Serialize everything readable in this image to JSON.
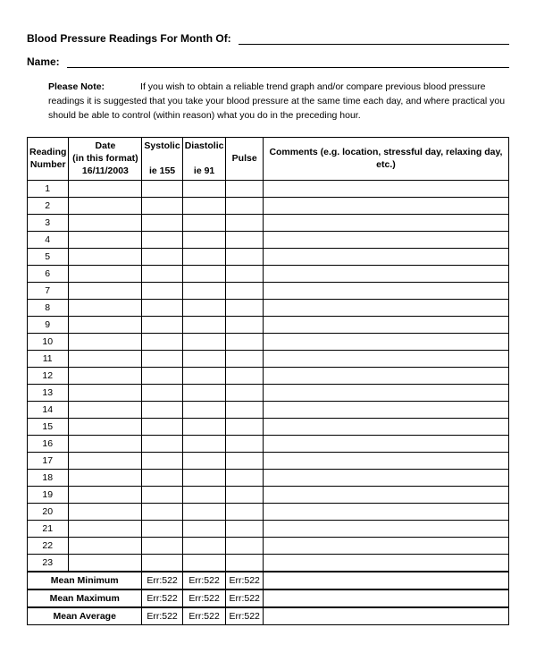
{
  "header": {
    "title_label": "Blood Pressure Readings For Month Of:",
    "name_label": "Name:"
  },
  "note": {
    "label": "Please Note:",
    "text": "If you wish to obtain a reliable trend graph and/or compare previous blood pressure readings it is suggested that you take your blood pressure at the same time each day, and where practical you should be able to control (within reason) what you do in the preceding hour."
  },
  "table": {
    "columns": {
      "number": {
        "line1": "Reading",
        "line2": "Number",
        "line3": ""
      },
      "date": {
        "line1": "Date",
        "line2": "(in this format)",
        "line3": "16/11/2003"
      },
      "systolic": {
        "line1": "Systolic",
        "line2": "",
        "line3": "ie 155"
      },
      "diastolic": {
        "line1": "Diastolic",
        "line2": "",
        "line3": "ie 91"
      },
      "pulse": {
        "line1": "Pulse",
        "line2": "",
        "line3": ""
      },
      "comments": {
        "line1": "Comments (e.g. location, stressful day, relaxing day, etc.)"
      }
    },
    "row_numbers": [
      "1",
      "2",
      "3",
      "4",
      "5",
      "6",
      "7",
      "8",
      "9",
      "10",
      "11",
      "12",
      "13",
      "14",
      "15",
      "16",
      "17",
      "18",
      "19",
      "20",
      "21",
      "22",
      "23"
    ],
    "summary": [
      {
        "label": "Mean Minimum",
        "sys": "Err:522",
        "dia": "Err:522",
        "pulse": "Err:522"
      },
      {
        "label": "Mean Maximum",
        "sys": "Err:522",
        "dia": "Err:522",
        "pulse": "Err:522"
      },
      {
        "label": "Mean Average",
        "sys": "Err:522",
        "dia": "Err:522",
        "pulse": "Err:522"
      }
    ]
  }
}
